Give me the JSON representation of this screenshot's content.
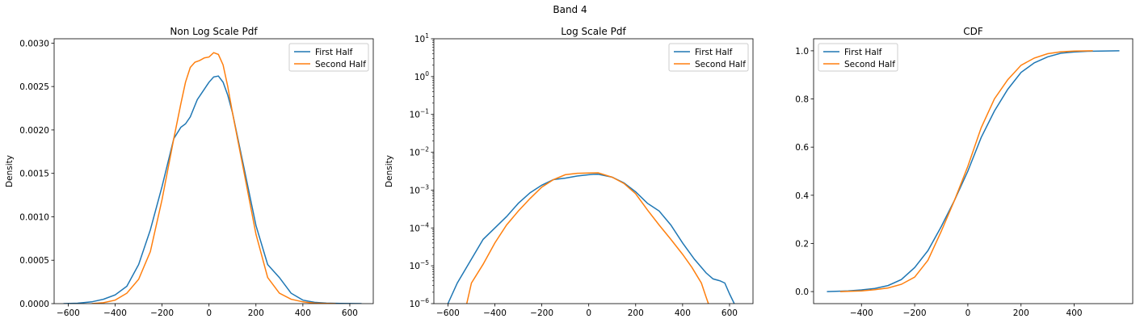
{
  "figure": {
    "suptitle": "Band 4"
  },
  "colors": {
    "first_half": "#1f77b4",
    "second_half": "#ff7f0e"
  },
  "chart_data": [
    {
      "type": "line",
      "title": "Non Log Scale Pdf",
      "xlabel": "",
      "ylabel": "Density",
      "xlim": [
        -660,
        700
      ],
      "ylim": [
        0,
        0.00305
      ],
      "xticks": [
        -600,
        -400,
        -200,
        0,
        200,
        400,
        600
      ],
      "yticks": [
        0,
        0.0005,
        0.001,
        0.0015,
        0.002,
        0.0025,
        0.003
      ],
      "ytick_labels": [
        "0.0000",
        "0.0005",
        "0.0010",
        "0.0015",
        "0.0020",
        "0.0025",
        "0.0030"
      ],
      "yscale": "linear",
      "grid": false,
      "legend_position": "top-right",
      "series": [
        {
          "name": "First Half",
          "x": [
            -620,
            -560,
            -500,
            -450,
            -400,
            -350,
            -300,
            -250,
            -200,
            -150,
            -120,
            -100,
            -80,
            -50,
            -20,
            0,
            20,
            40,
            60,
            80,
            100,
            150,
            200,
            250,
            300,
            350,
            400,
            450,
            500,
            560,
            650
          ],
          "y": [
            0,
            5e-06,
            2e-05,
            5e-05,
            0.0001,
            0.0002,
            0.00045,
            0.00085,
            0.00135,
            0.0019,
            0.00203,
            0.00207,
            0.00215,
            0.00235,
            0.00247,
            0.00255,
            0.00261,
            0.00262,
            0.00255,
            0.0024,
            0.0022,
            0.00155,
            0.0009,
            0.00045,
            0.0003,
            0.00012,
            4e-05,
            1.5e-05,
            6e-06,
            2e-06,
            0
          ]
        },
        {
          "name": "Second Half",
          "x": [
            -500,
            -450,
            -400,
            -350,
            -300,
            -250,
            -200,
            -150,
            -120,
            -100,
            -80,
            -60,
            -40,
            -20,
            0,
            20,
            40,
            60,
            80,
            100,
            150,
            200,
            250,
            300,
            350,
            400,
            450,
            500,
            540
          ],
          "y": [
            0,
            1e-05,
            4e-05,
            0.00012,
            0.00028,
            0.0006,
            0.0012,
            0.0019,
            0.0023,
            0.00255,
            0.00272,
            0.00278,
            0.0028,
            0.00283,
            0.00284,
            0.00289,
            0.00287,
            0.00275,
            0.0025,
            0.0022,
            0.0015,
            0.0008,
            0.0003,
            0.00012,
            5e-05,
            2e-05,
            6e-06,
            2e-06,
            0
          ]
        }
      ]
    },
    {
      "type": "line",
      "title": "Log Scale Pdf",
      "xlabel": "",
      "ylabel": "Density",
      "xlim": [
        -660,
        700
      ],
      "ylim": [
        1e-06,
        10
      ],
      "xticks": [
        -600,
        -400,
        -200,
        0,
        200,
        400,
        600
      ],
      "yscale": "log",
      "yticks_exponents": [
        -6,
        -5,
        -4,
        -3,
        -2,
        -1,
        0,
        1
      ],
      "grid": false,
      "legend_position": "top-right",
      "series": [
        {
          "name": "First Half",
          "x": [
            -600,
            -560,
            -500,
            -450,
            -400,
            -350,
            -300,
            -250,
            -200,
            -150,
            -100,
            -50,
            0,
            20,
            40,
            100,
            150,
            200,
            250,
            300,
            350,
            400,
            450,
            500,
            530,
            560,
            580,
            600,
            620
          ],
          "y": [
            1e-06,
            3.5e-06,
            1.5e-05,
            5e-05,
            0.0001,
            0.0002,
            0.00045,
            0.00085,
            0.00135,
            0.0019,
            0.00207,
            0.00235,
            0.00255,
            0.00261,
            0.00262,
            0.0022,
            0.00155,
            0.0009,
            0.00045,
            0.00028,
            0.00012,
            4e-05,
            1.5e-05,
            6.5e-06,
            4.5e-06,
            4e-06,
            3.5e-06,
            1.8e-06,
            1e-06
          ]
        },
        {
          "name": "Second Half",
          "x": [
            -520,
            -500,
            -450,
            -400,
            -350,
            -300,
            -250,
            -200,
            -150,
            -100,
            -50,
            0,
            40,
            100,
            150,
            200,
            250,
            300,
            350,
            400,
            440,
            480,
            500,
            510
          ],
          "y": [
            1e-06,
            3.5e-06,
            1.1e-05,
            4e-05,
            0.00012,
            0.00028,
            0.0006,
            0.0012,
            0.0019,
            0.00255,
            0.00278,
            0.00284,
            0.00287,
            0.0022,
            0.0015,
            0.0008,
            0.0003,
            0.00012,
            5e-05,
            2e-05,
            9e-06,
            3.5e-06,
            1.5e-06,
            1e-06
          ]
        }
      ]
    },
    {
      "type": "line",
      "title": "CDF",
      "xlabel": "",
      "ylabel": "",
      "xlim": [
        -580,
        620
      ],
      "ylim": [
        -0.05,
        1.05
      ],
      "xticks": [
        -400,
        -200,
        0,
        200,
        400
      ],
      "yticks": [
        0,
        0.2,
        0.4,
        0.6,
        0.8,
        1.0
      ],
      "ytick_labels": [
        "0.0",
        "0.2",
        "0.4",
        "0.6",
        "0.8",
        "1.0"
      ],
      "yscale": "linear",
      "grid": false,
      "legend_position": "top-left",
      "series": [
        {
          "name": "First Half",
          "x": [
            -530,
            -450,
            -400,
            -350,
            -300,
            -250,
            -200,
            -150,
            -100,
            -50,
            0,
            50,
            100,
            150,
            200,
            250,
            300,
            350,
            400,
            450,
            500,
            570
          ],
          "y": [
            0,
            0.003,
            0.007,
            0.013,
            0.025,
            0.05,
            0.1,
            0.17,
            0.27,
            0.38,
            0.5,
            0.64,
            0.75,
            0.84,
            0.91,
            0.95,
            0.975,
            0.99,
            0.995,
            0.998,
            0.999,
            1.0
          ]
        },
        {
          "name": "Second Half",
          "x": [
            -480,
            -400,
            -350,
            -300,
            -250,
            -200,
            -150,
            -100,
            -50,
            0,
            50,
            100,
            150,
            200,
            250,
            300,
            350,
            400,
            470
          ],
          "y": [
            0,
            0.003,
            0.008,
            0.015,
            0.03,
            0.06,
            0.13,
            0.25,
            0.38,
            0.52,
            0.68,
            0.8,
            0.88,
            0.94,
            0.97,
            0.988,
            0.996,
            0.999,
            1.0
          ]
        }
      ]
    }
  ]
}
